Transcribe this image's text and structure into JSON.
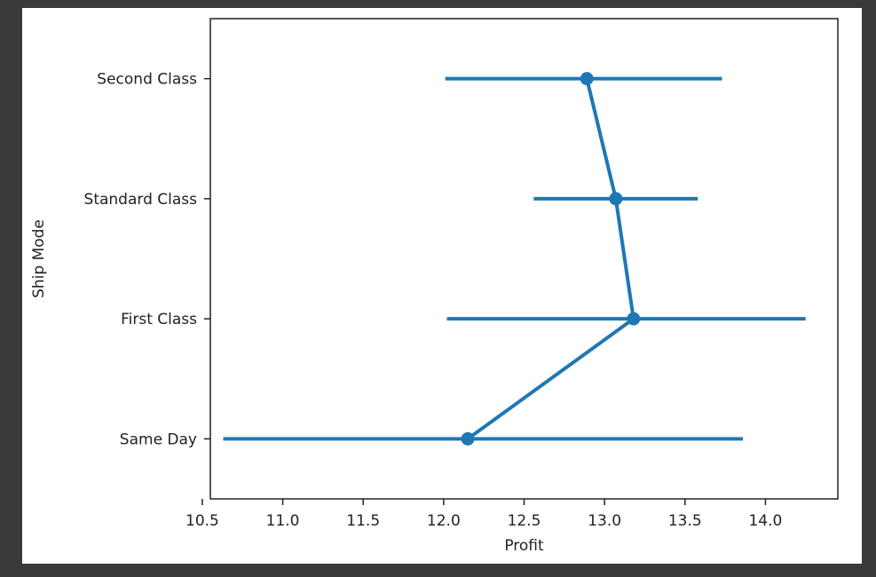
{
  "chart_data": {
    "type": "pointplot",
    "orientation": "horizontal",
    "xlabel": "Profit",
    "ylabel": "Ship Mode",
    "xlim": [
      10.55,
      14.45
    ],
    "x_ticks": [
      10.5,
      11.0,
      11.5,
      12.0,
      12.5,
      13.0,
      13.5,
      14.0
    ],
    "x_tick_labels": [
      "10.5",
      "11.0",
      "11.5",
      "12.0",
      "12.5",
      "13.0",
      "13.5",
      "14.0"
    ],
    "categories": [
      "Second Class",
      "Standard Class",
      "First Class",
      "Same Day"
    ],
    "series": [
      {
        "values": [
          12.89,
          13.07,
          13.18,
          12.15
        ],
        "ci_low": [
          12.01,
          12.56,
          12.02,
          10.63
        ],
        "ci_high": [
          13.73,
          13.58,
          14.25,
          13.86
        ]
      }
    ],
    "color": "#1f77b4",
    "grid": false,
    "legend": false
  }
}
